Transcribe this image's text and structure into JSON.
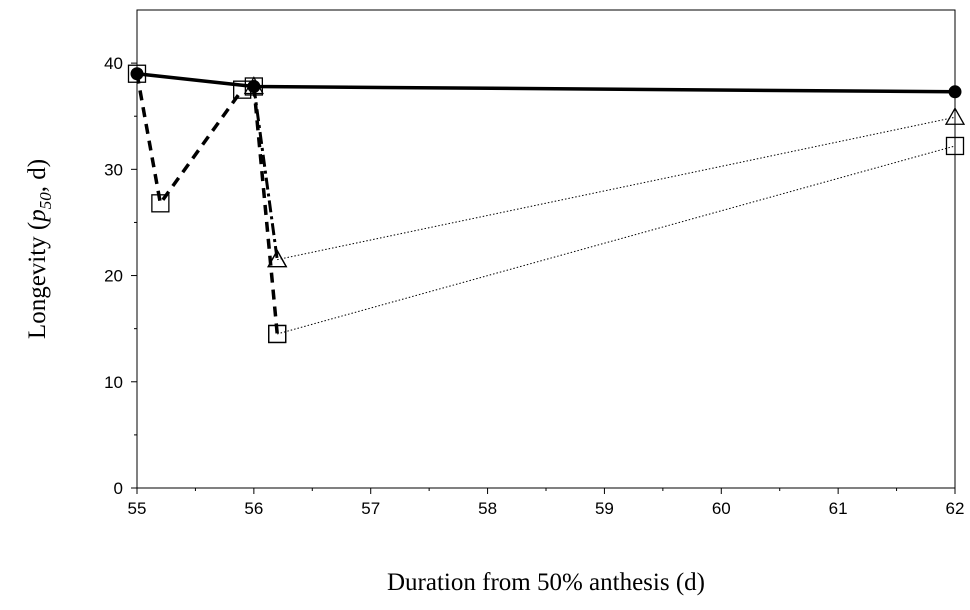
{
  "chart_data": {
    "type": "line",
    "xlabel": "Duration from 50% anthesis (d)",
    "ylabel": {
      "prefix": "Longevity (",
      "var": "p",
      "sub": "50",
      "suffix": ", d)"
    },
    "xlim": [
      55,
      62
    ],
    "ylim": [
      0,
      45
    ],
    "xticks": [
      55,
      56,
      57,
      58,
      59,
      60,
      61,
      62
    ],
    "yticks": [
      0,
      10,
      20,
      30,
      40
    ],
    "grid": false,
    "legend": "none",
    "series": [
      {
        "line": "solid",
        "marker": "filled-circle",
        "x": [
          55,
          56,
          62
        ],
        "y": [
          39.0,
          37.8,
          37.3
        ]
      },
      {
        "line": "dashed",
        "marker": "open-square",
        "x": [
          55,
          55.2,
          55.9
        ],
        "y": [
          39.0,
          26.8,
          37.5
        ]
      },
      {
        "line": "dash-dot",
        "marker": "open-triangle",
        "x": [
          56,
          56.2
        ],
        "y": [
          37.8,
          21.5
        ]
      },
      {
        "line": "dashed",
        "marker": "open-square",
        "x": [
          56,
          56.2
        ],
        "y": [
          37.8,
          14.5
        ]
      },
      {
        "line": "dotted",
        "marker": "open-triangle",
        "x": [
          56.2,
          62
        ],
        "y": [
          21.5,
          34.9
        ]
      },
      {
        "line": "dotted",
        "marker": "open-square",
        "x": [
          56.2,
          62
        ],
        "y": [
          14.5,
          32.2
        ]
      }
    ]
  }
}
